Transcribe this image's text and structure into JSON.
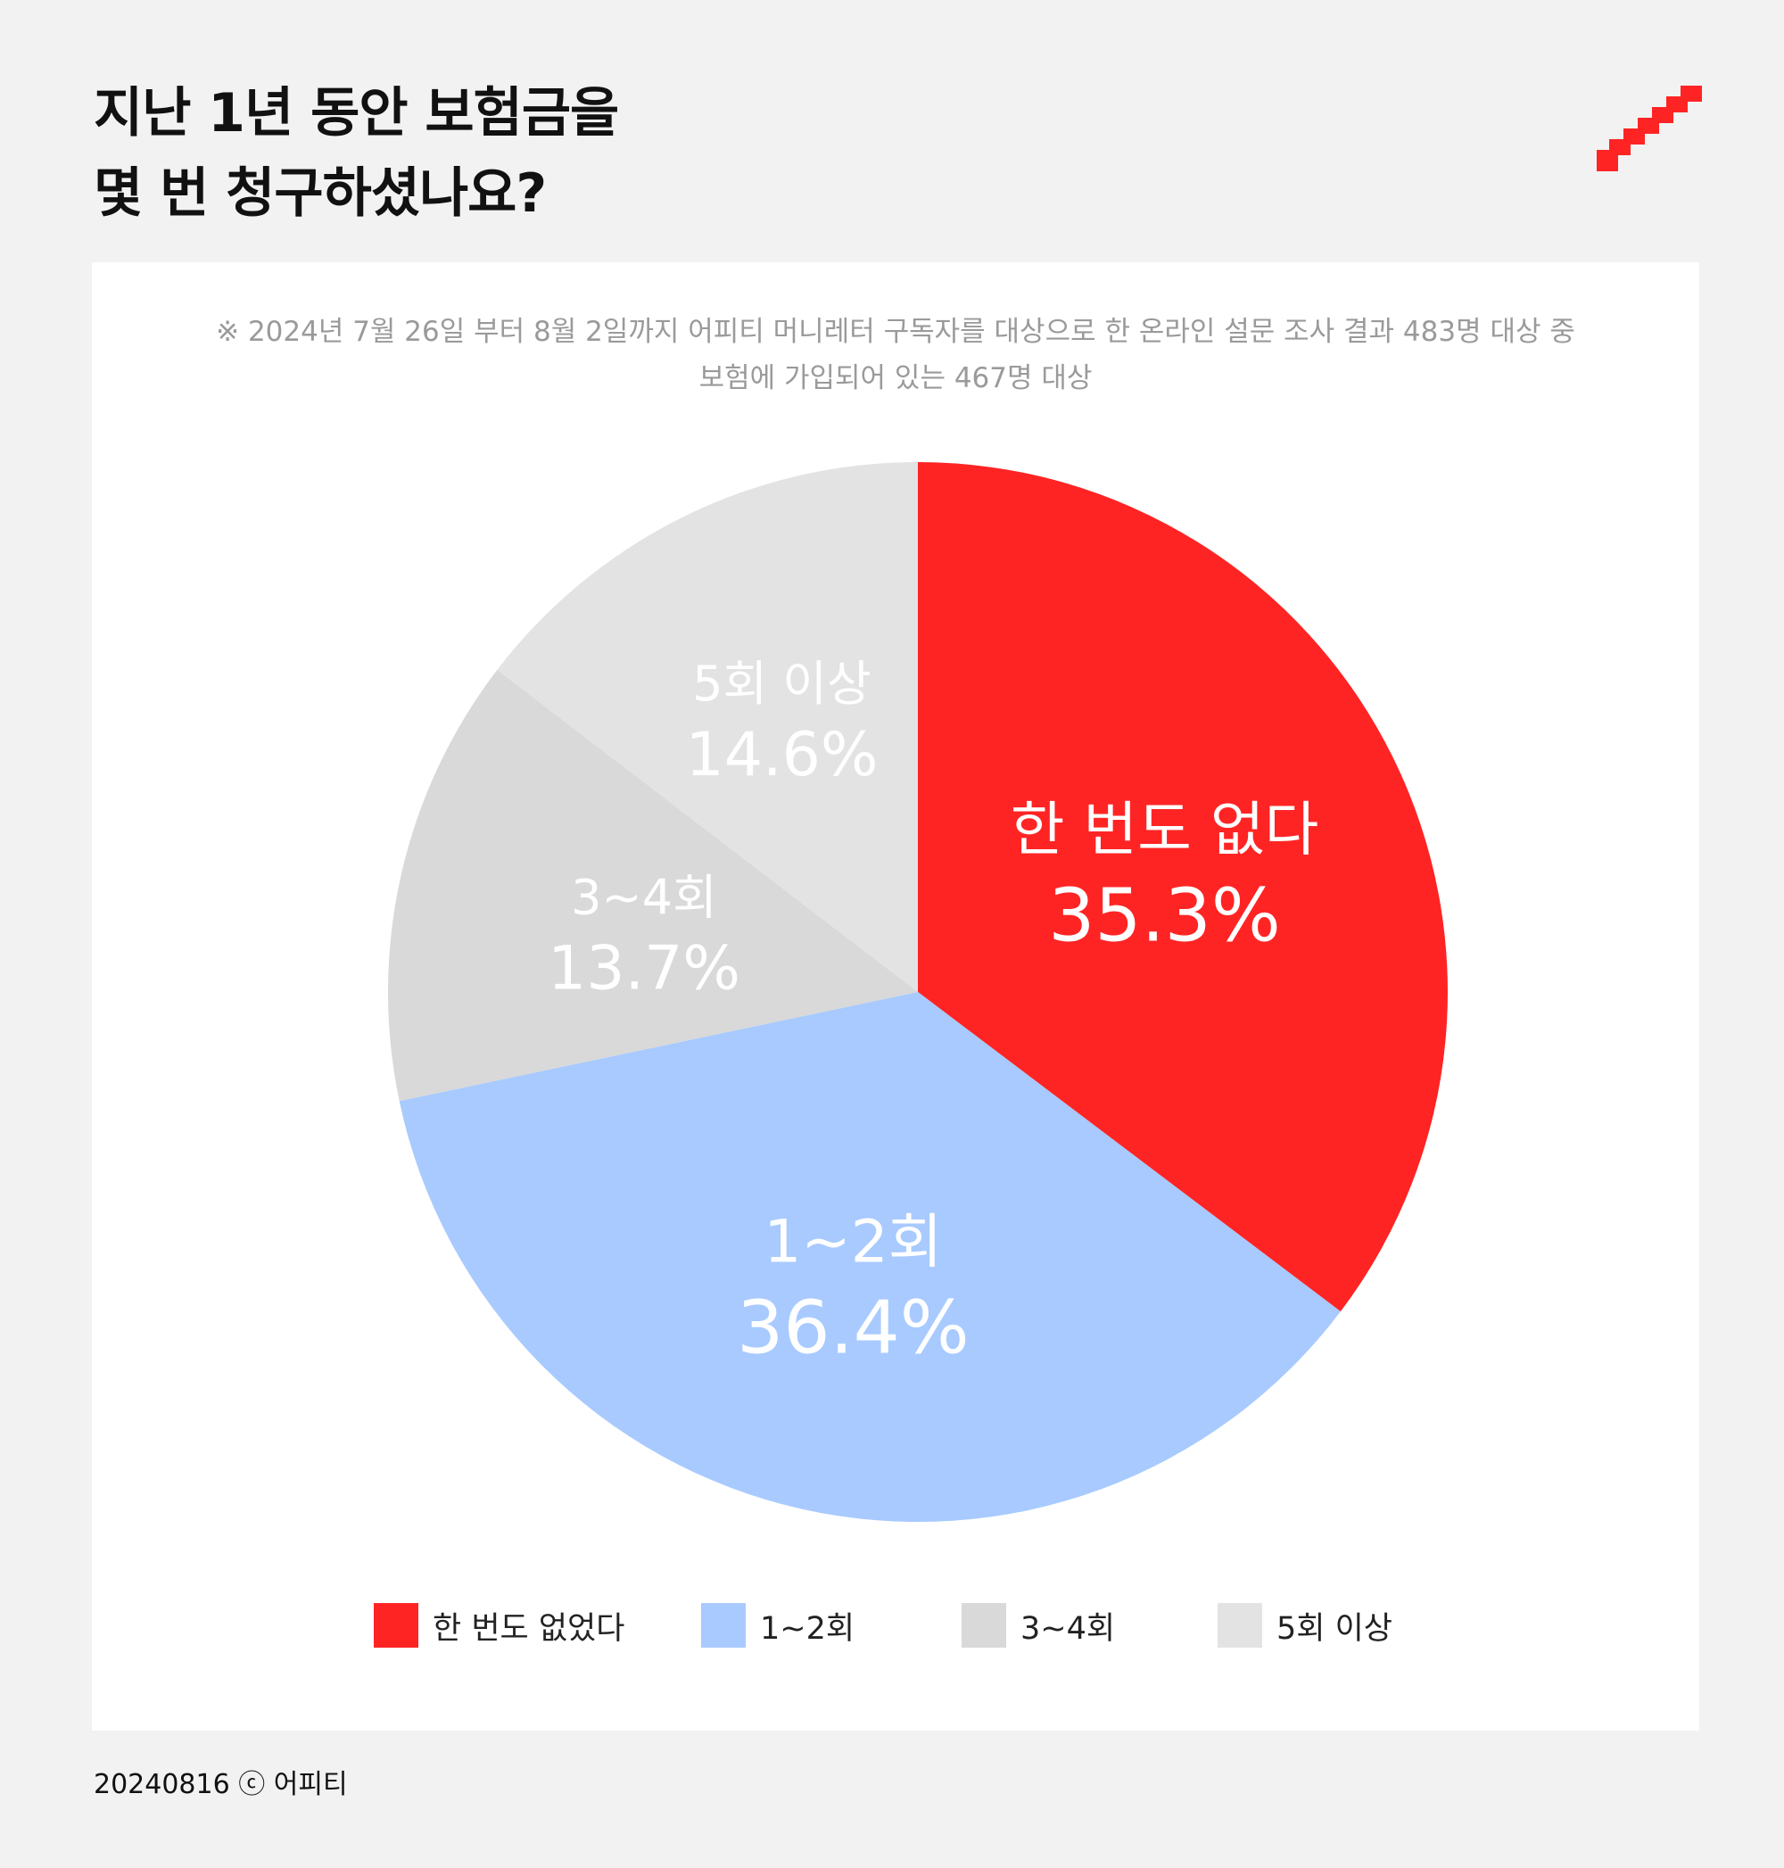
{
  "title": {
    "line1": "지난 1년 동안 보험금을",
    "line2": "몇 번 청구하셨나요?"
  },
  "note": {
    "line1": "※ 2024년 7월 26일 부터 8월 2일까지 어피티 머니레터 구독자를 대상으로 한 온라인 설문 조사 결과 483명 대상 중",
    "line2": "보험에 가입되어 있는 467명 대상"
  },
  "chart_data": {
    "type": "pie",
    "start": "12 o'clock, clockwise",
    "slices": [
      {
        "label": "한 번도 없다",
        "legend": "한 번도 없었다",
        "value": 35.3,
        "value_label": "35.3%",
        "color": "#ff2424"
      },
      {
        "label": "1~2회",
        "legend": "1~2회",
        "value": 36.4,
        "value_label": "36.4%",
        "color": "#a8caff"
      },
      {
        "label": "3~4회",
        "legend": "3~4회",
        "value": 13.7,
        "value_label": "13.7%",
        "color": "#d9d9d9"
      },
      {
        "label": "5회 이상",
        "legend": "5회 이상",
        "value": 14.6,
        "value_label": "14.6%",
        "color": "#e3e3e3"
      }
    ],
    "legend_position": "bottom"
  },
  "colors": {
    "background": "#f2f2f2",
    "card": "#ffffff",
    "brand": "#ff2424",
    "label_text": "#ffffff"
  },
  "logo": {
    "icon": "staircase-logo-icon"
  },
  "footer": {
    "text": "20240816 ⓒ 어피티"
  }
}
